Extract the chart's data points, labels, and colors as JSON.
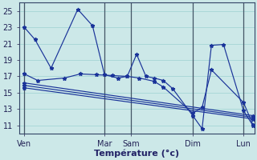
{
  "background_color": "#cce8e8",
  "grid_color": "#aad8d8",
  "line_color": "#1a3399",
  "xlabel": "Température (°c)",
  "ylim": [
    10,
    26
  ],
  "yticks": [
    11,
    13,
    15,
    17,
    19,
    21,
    23,
    25
  ],
  "xlim": [
    -0.2,
    8.6
  ],
  "x_day_positions": [
    0,
    3.0,
    4.0,
    6.3,
    8.2
  ],
  "x_day_labels": [
    "Ven",
    "Mar",
    "Sam",
    "Dim",
    "Lun"
  ],
  "vlines": [
    0,
    3.0,
    4.0,
    6.3,
    8.2
  ],
  "line1_x": [
    0,
    0.4,
    1.0,
    2.0,
    2.55,
    3.0,
    3.5,
    3.85,
    4.2,
    4.55,
    4.85,
    5.2,
    5.55,
    6.3,
    6.65,
    7.0,
    7.45,
    8.2,
    8.55
  ],
  "line1_y": [
    23.0,
    21.5,
    18.0,
    25.2,
    23.2,
    17.2,
    16.8,
    17.0,
    19.7,
    17.0,
    16.8,
    16.5,
    15.5,
    12.2,
    10.6,
    20.8,
    20.9,
    12.8,
    11.0
  ],
  "line2_x": [
    0,
    0.5,
    1.5,
    2.1,
    2.7,
    3.3,
    3.85,
    4.3,
    4.85,
    5.2,
    6.3,
    6.65,
    7.0,
    8.2,
    8.55
  ],
  "line2_y": [
    17.3,
    16.5,
    16.8,
    17.3,
    17.2,
    17.1,
    17.0,
    16.8,
    16.4,
    15.7,
    12.5,
    13.2,
    17.8,
    13.8,
    11.1
  ],
  "line3_x": [
    0,
    8.55
  ],
  "line3_y": [
    16.2,
    12.2
  ],
  "line4_x": [
    0,
    8.55
  ],
  "line4_y": [
    15.9,
    12.0
  ],
  "line5_x": [
    0,
    8.55
  ],
  "line5_y": [
    15.6,
    11.8
  ]
}
